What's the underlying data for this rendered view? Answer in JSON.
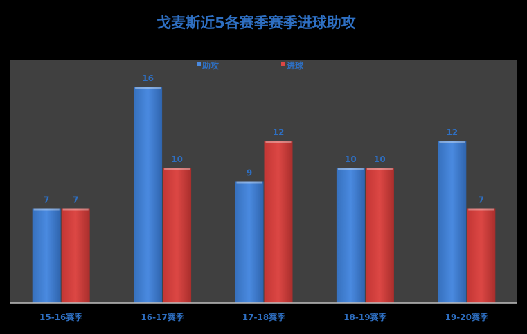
{
  "chart_data": {
    "type": "bar",
    "title": "戈麦斯近5各赛季赛季进球助攻",
    "categories": [
      "15-16赛季",
      "16-17赛季",
      "17-18赛季",
      "18-19赛季",
      "19-20赛季"
    ],
    "series": [
      {
        "name": "助攻",
        "values": [
          7,
          16,
          9,
          10,
          12
        ],
        "color": "#3f7fd4"
      },
      {
        "name": "进球",
        "values": [
          7,
          10,
          12,
          10,
          7
        ],
        "color": "#d23c3a"
      }
    ],
    "xlabel": "",
    "ylabel": "",
    "ylim": [
      0,
      18
    ],
    "grid": false,
    "legend": "top",
    "data_labels": true,
    "colors": {
      "background": "#000000",
      "plot_area": "#404040",
      "text": "#2e6fc2"
    }
  }
}
